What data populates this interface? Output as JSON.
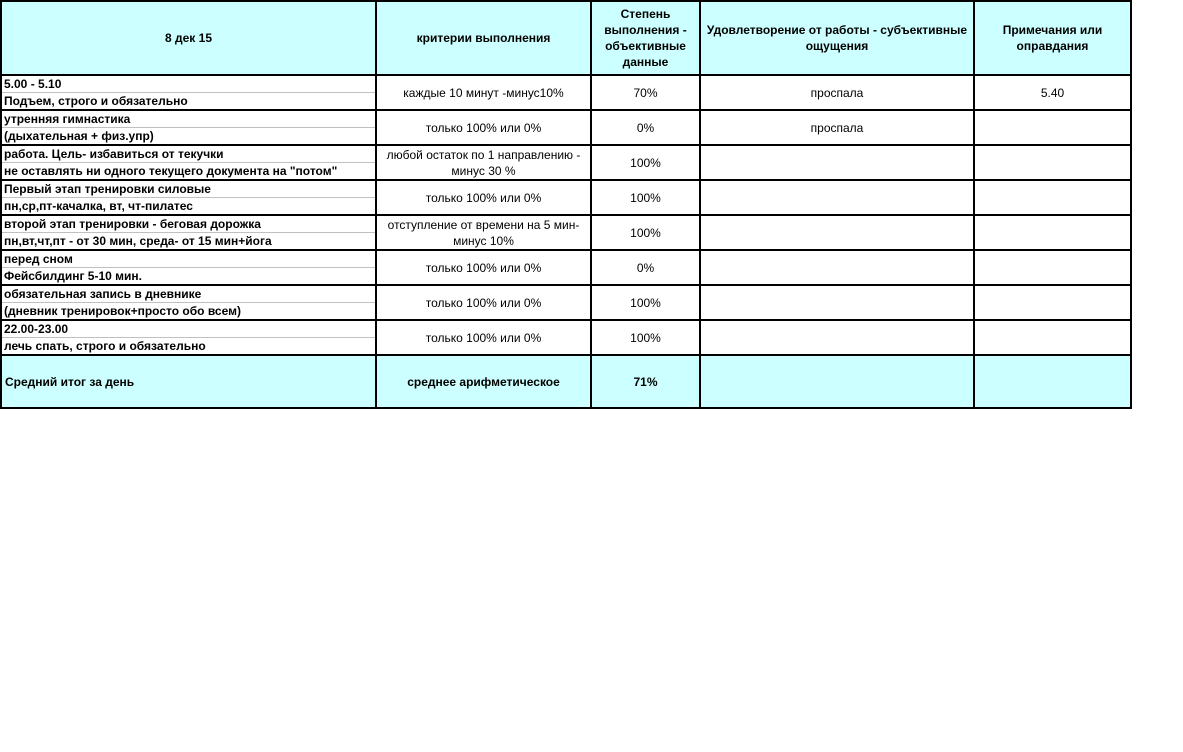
{
  "header": {
    "date": "8 дек 15",
    "criteria": "критерии выполнения",
    "degree": "Степень выполнения - объективные данные",
    "satisfaction": "Удовлетворение от работы - субъективные ощущения",
    "notes": "Примечания или оправдания"
  },
  "colors": {
    "header_bg": "#ccffff",
    "border": "#000000"
  },
  "rows": [
    {
      "line1": "5.00 - 5.10",
      "line2": "Подъем, строго и обязательно",
      "criteria": "каждые 10 минут -минус10%",
      "degree": "70%",
      "satisfaction": "проспала",
      "notes": "5.40"
    },
    {
      "line1": "утренняя гимнастика",
      "line2": "(дыхательная + физ.упр)",
      "criteria": "только 100% или 0%",
      "degree": "0%",
      "satisfaction": "проспала",
      "notes": ""
    },
    {
      "line1": "работа. Цель- избавиться от текучки",
      "line2": "не оставлять ни одного текущего документа на \"потом\"",
      "criteria": "любой остаток по 1 направлению - минус 30 %",
      "degree": "100%",
      "satisfaction": "",
      "notes": ""
    },
    {
      "line1": "Первый этап тренировки силовые",
      "line2": "пн,ср,пт-качалка, вт, чт-пилатес",
      "criteria": "только 100% или 0%",
      "degree": "100%",
      "satisfaction": "",
      "notes": ""
    },
    {
      "line1": "второй этап тренировки - беговая дорожка",
      "line2": "пн,вт,чт,пт - от 30 мин, среда- от 15 мин+йога",
      "criteria": "отступление от времени на 5 мин- минус 10%",
      "degree": "100%",
      "satisfaction": "",
      "notes": ""
    },
    {
      "line1": "перед сном",
      "line2": "Фейсбилдинг 5-10 мин.",
      "criteria": "только 100% или 0%",
      "degree": "0%",
      "satisfaction": "",
      "notes": ""
    },
    {
      "line1": "обязательная запись в дневнике",
      "line2": "(дневник тренировок+просто обо всем)",
      "criteria": "только 100% или 0%",
      "degree": "100%",
      "satisfaction": "",
      "notes": ""
    },
    {
      "line1": "22.00-23.00",
      "line2": "лечь спать, строго и обязательно",
      "criteria": "только 100% или 0%",
      "degree": "100%",
      "satisfaction": "",
      "notes": ""
    }
  ],
  "footer": {
    "label": "Средний итог за день",
    "criteria": "среднее арифметическое",
    "degree": "71%",
    "satisfaction": "",
    "notes": ""
  }
}
